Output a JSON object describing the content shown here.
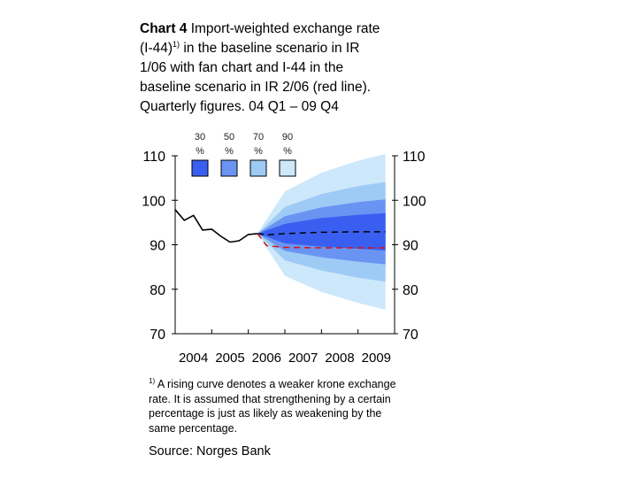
{
  "title": {
    "bold": "Chart 4",
    "line1_rest": "Import-weighted exchange rate",
    "line2_pre": "(I-44)",
    "line2_sup": "1)",
    "line2_post": "in the baseline scenario in IR",
    "line3": "1/06 with fan chart and I-44 in the",
    "line4": "baseline scenario in IR 2/06 (red line).",
    "line5": "Quarterly figures. 04 Q1 – 09 Q4"
  },
  "footnote": {
    "marker": "1)",
    "line1": "A rising curve denotes a weaker krone exchange",
    "line2": "rate. It is assumed that strengthening by a certain",
    "line3": "percentage is just as likely as weakening by the",
    "line4": "same percentage."
  },
  "source": "Source: Norges Bank",
  "chart_data": {
    "type": "line",
    "title": "Import-weighted exchange rate (I-44) in the baseline scenario in IR 1/06 with fan chart and I-44 in the baseline scenario in IR 2/06 (red line)",
    "xlabel": "",
    "ylabel": "",
    "ylim": [
      70,
      110
    ],
    "xlim": [
      2004.0,
      2010.0
    ],
    "x_tick_labels": [
      "2004",
      "2005",
      "2006",
      "2007",
      "2008",
      "2009"
    ],
    "y_ticks": [
      70,
      80,
      90,
      100,
      110
    ],
    "y_tick_labels": [
      "70",
      "80",
      "90",
      "100",
      "110"
    ],
    "legend": {
      "placement": "top-left",
      "entries": [
        {
          "label": "30",
          "unit": "%",
          "color": "#3a5ff0"
        },
        {
          "label": "50",
          "unit": "%",
          "color": "#6a94f2"
        },
        {
          "label": "70",
          "unit": "%",
          "color": "#9ecbf6"
        },
        {
          "label": "90",
          "unit": "%",
          "color": "#cde8fb"
        }
      ]
    },
    "series": [
      {
        "name": "I-44 history",
        "color": "#000000",
        "style": "solid",
        "x": [
          2004.0,
          2004.25,
          2004.5,
          2004.75,
          2005.0,
          2005.25,
          2005.5,
          2005.75,
          2006.0,
          2006.25
        ],
        "values": [
          97.9,
          95.5,
          96.6,
          93.3,
          93.5,
          91.9,
          90.6,
          90.9,
          92.3,
          92.5
        ]
      },
      {
        "name": "Baseline scenario IR 1/06",
        "color": "#000000",
        "style": "dashed",
        "x": [
          2006.25,
          2006.5,
          2007.0,
          2008.0,
          2009.0,
          2009.75
        ],
        "values": [
          92.5,
          92.2,
          92.5,
          92.8,
          92.9,
          92.9
        ]
      },
      {
        "name": "Baseline scenario IR 2/06",
        "color": "#e01010",
        "style": "dashed",
        "x": [
          2006.25,
          2006.5,
          2007.0,
          2008.0,
          2009.0,
          2009.75
        ],
        "values": [
          92.5,
          89.8,
          89.4,
          89.3,
          89.3,
          89.3
        ]
      }
    ],
    "fan": {
      "x": [
        2006.25,
        2007.0,
        2008.0,
        2009.0,
        2009.75
      ],
      "center": [
        92.5,
        92.5,
        92.8,
        92.9,
        92.9
      ],
      "half_width": {
        "30": [
          0.0,
          2.2,
          3.2,
          3.8,
          4.2
        ],
        "50": [
          0.0,
          3.9,
          5.6,
          6.7,
          7.3
        ],
        "70": [
          0.0,
          6.0,
          8.6,
          10.3,
          11.2
        ],
        "90": [
          0.0,
          9.5,
          13.4,
          16.0,
          17.5
        ]
      }
    }
  }
}
